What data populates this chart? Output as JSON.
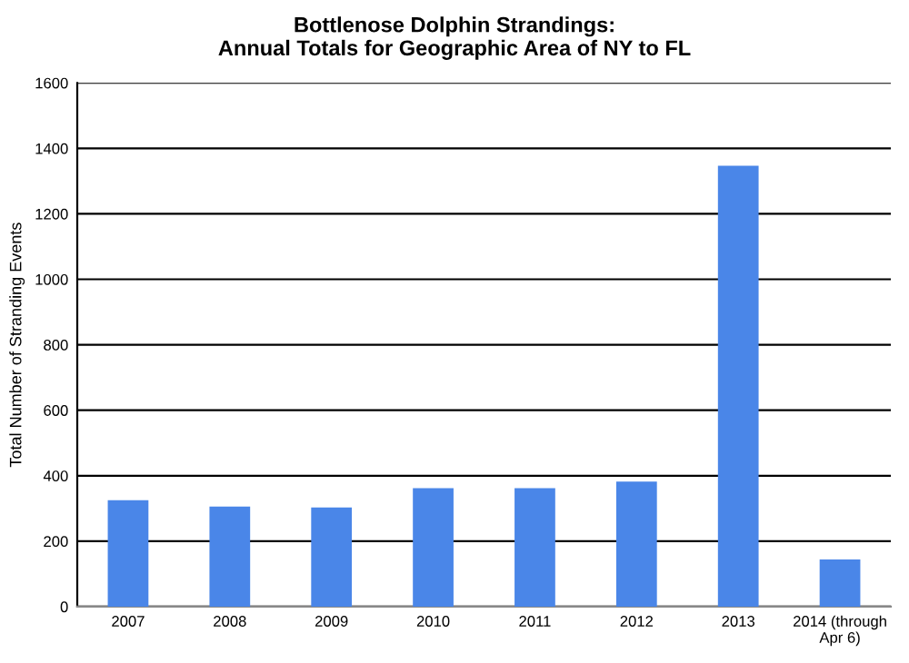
{
  "chart_data": {
    "type": "bar",
    "title": "Bottlenose Dolphin Strandings:\nAnnual Totals for Geographic Area of NY to FL",
    "ylabel": "Total Number of Stranding Events",
    "categories": [
      "2007",
      "2008",
      "2009",
      "2010",
      "2011",
      "2012",
      "2013",
      "2014 (through\nApr 6)"
    ],
    "values": [
      325,
      306,
      303,
      362,
      362,
      382,
      1347,
      144
    ],
    "color": "#4a86e8",
    "ylim": [
      0,
      1600
    ],
    "yticks": [
      0,
      200,
      400,
      600,
      800,
      1000,
      1200,
      1400,
      1600
    ],
    "grid": "y"
  }
}
